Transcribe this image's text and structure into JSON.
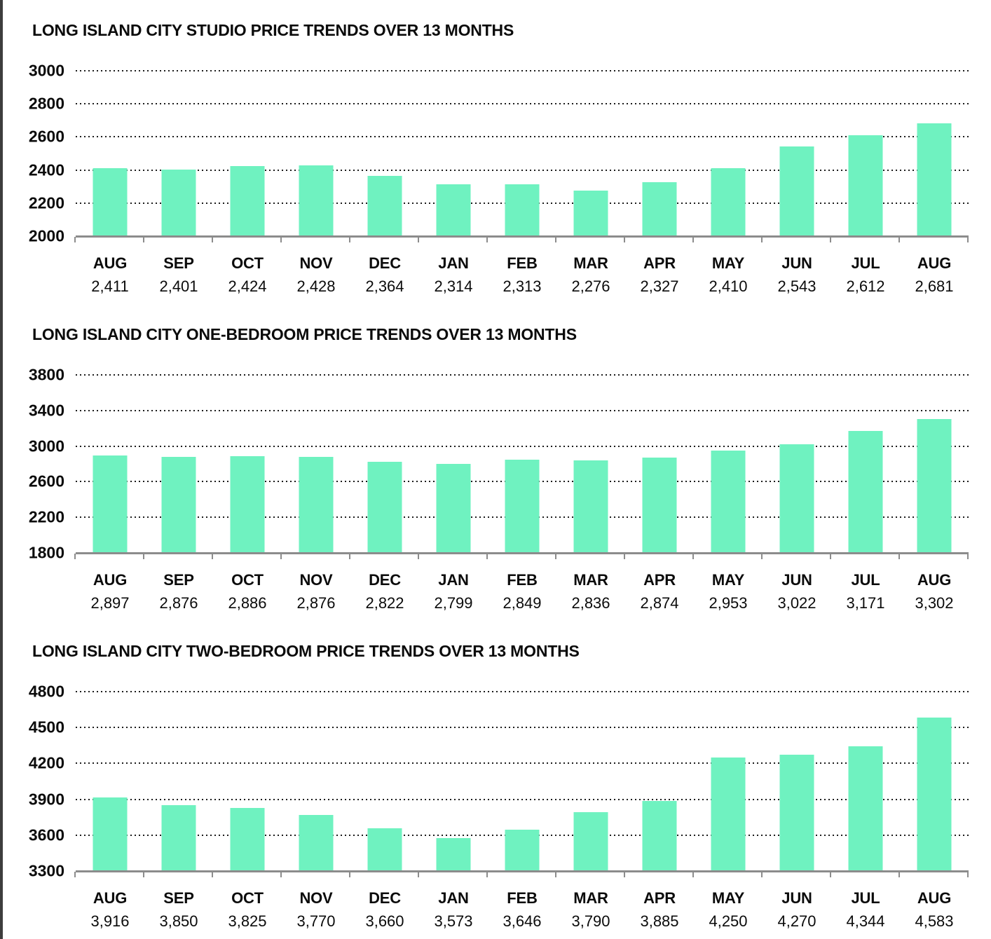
{
  "page": {
    "background": "#ffffff",
    "left_border_color": "#3d3d3d",
    "text_color": "#0b0b0b",
    "bar_color": "#6ff2c0",
    "gridline_color": "#1c1c1c",
    "axis_color": "#8c8c8c"
  },
  "chart_data": [
    {
      "type": "bar",
      "title": "LONG ISLAND CITY STUDIO PRICE TRENDS OVER 13 MONTHS",
      "categories": [
        "AUG",
        "SEP",
        "OCT",
        "NOV",
        "DEC",
        "JAN",
        "FEB",
        "MAR",
        "APR",
        "MAY",
        "JUN",
        "JUL",
        "AUG"
      ],
      "values": [
        2411,
        2401,
        2424,
        2428,
        2364,
        2314,
        2313,
        2276,
        2327,
        2410,
        2543,
        2612,
        2681
      ],
      "values_display": [
        "2,411",
        "2,401",
        "2,424",
        "2,428",
        "2,364",
        "2,314",
        "2,313",
        "2,276",
        "2,327",
        "2,410",
        "2,543",
        "2,612",
        "2,681"
      ],
      "y_ticks": [
        3000,
        2800,
        2600,
        2400,
        2200,
        2000
      ],
      "ylim": [
        2000,
        3000
      ],
      "xlabel": "",
      "ylabel": "",
      "grid": "horizontal-dotted",
      "legend": "none"
    },
    {
      "type": "bar",
      "title": "LONG ISLAND CITY ONE-BEDROOM PRICE TRENDS OVER 13 MONTHS",
      "categories": [
        "AUG",
        "SEP",
        "OCT",
        "NOV",
        "DEC",
        "JAN",
        "FEB",
        "MAR",
        "APR",
        "MAY",
        "JUN",
        "JUL",
        "AUG"
      ],
      "values": [
        2897,
        2876,
        2886,
        2876,
        2822,
        2799,
        2849,
        2836,
        2874,
        2953,
        3022,
        3171,
        3302
      ],
      "values_display": [
        "2,897",
        "2,876",
        "2,886",
        "2,876",
        "2,822",
        "2,799",
        "2,849",
        "2,836",
        "2,874",
        "2,953",
        "3,022",
        "3,171",
        "3,302"
      ],
      "y_ticks": [
        3800,
        3400,
        3000,
        2600,
        2200,
        1800
      ],
      "ylim": [
        1800,
        3800
      ],
      "xlabel": "",
      "ylabel": "",
      "grid": "horizontal-dotted",
      "legend": "none"
    },
    {
      "type": "bar",
      "title": "LONG ISLAND CITY TWO-BEDROOM PRICE TRENDS OVER 13 MONTHS",
      "categories": [
        "AUG",
        "SEP",
        "OCT",
        "NOV",
        "DEC",
        "JAN",
        "FEB",
        "MAR",
        "APR",
        "MAY",
        "JUN",
        "JUL",
        "AUG"
      ],
      "values": [
        3916,
        3850,
        3825,
        3770,
        3660,
        3573,
        3646,
        3790,
        3885,
        4250,
        4270,
        4344,
        4583
      ],
      "values_display": [
        "3,916",
        "3,850",
        "3,825",
        "3,770",
        "3,660",
        "3,573",
        "3,646",
        "3,790",
        "3,885",
        "4,250",
        "4,270",
        "4,344",
        "4,583"
      ],
      "y_ticks": [
        4800,
        4500,
        4200,
        3900,
        3600,
        3300
      ],
      "ylim": [
        3300,
        4800
      ],
      "xlabel": "",
      "ylabel": "",
      "grid": "horizontal-dotted",
      "legend": "none"
    }
  ]
}
